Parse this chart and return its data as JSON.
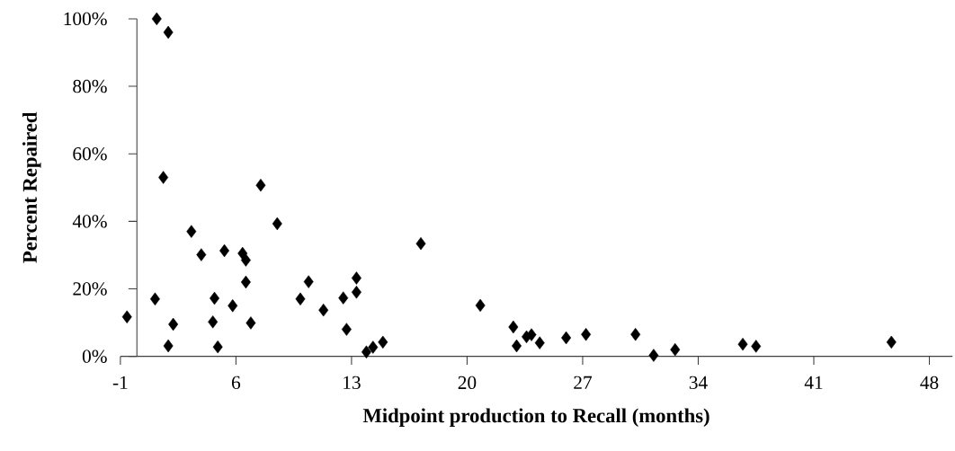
{
  "chart_data": {
    "type": "scatter",
    "xlabel": "Midpoint production to Recall (months)",
    "ylabel": "Percent Repaired",
    "x": [
      1.2,
      1.9,
      1.6,
      -0.6,
      1.1,
      2.2,
      1.9,
      3.3,
      3.9,
      5.3,
      6.4,
      6.6,
      6.6,
      4.7,
      5.8,
      4.6,
      4.9,
      6.9,
      7.5,
      8.5,
      10.4,
      9.9,
      11.3,
      12.5,
      13.3,
      13.3,
      12.7,
      13.9,
      14.3,
      14.9,
      17.2,
      20.8,
      22.8,
      23.0,
      23.6,
      23.9,
      24.4,
      26.0,
      27.2,
      30.2,
      31.3,
      32.6,
      36.7,
      37.5,
      45.7
    ],
    "values": [
      100,
      96,
      53,
      11.7,
      17,
      9.5,
      3.1,
      37,
      30.1,
      31.3,
      30.5,
      28.5,
      22,
      17.2,
      15,
      10.2,
      2.8,
      9.9,
      50.7,
      39.3,
      22.1,
      17,
      13.7,
      17.3,
      23.2,
      19,
      8,
      1.3,
      2.7,
      4.2,
      33.4,
      15.1,
      8.7,
      3.1,
      5.8,
      6.4,
      4,
      5.5,
      6.5,
      6.5,
      0.3,
      2,
      3.6,
      3,
      4.2
    ],
    "color": "#000000",
    "marker": "diamond",
    "xlim": [
      -1,
      49.4
    ],
    "xticks": [
      -1,
      6,
      13,
      20,
      27,
      34,
      41,
      48
    ],
    "ylim": [
      0,
      100
    ],
    "yticks": [
      {
        "value": 0,
        "label": "0%"
      },
      {
        "value": 20,
        "label": "20%"
      },
      {
        "value": 40,
        "label": "40%"
      },
      {
        "value": 60,
        "label": "60%"
      },
      {
        "value": 80,
        "label": "80%"
      },
      {
        "value": 100,
        "label": "100%"
      }
    ]
  }
}
